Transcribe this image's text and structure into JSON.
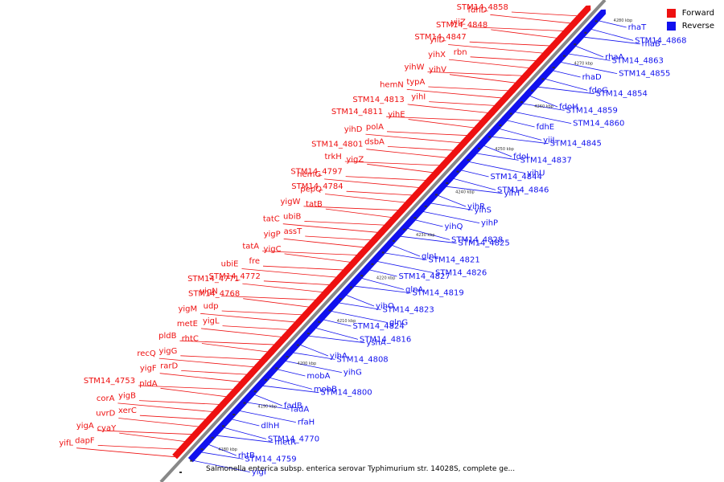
{
  "caption": "Salmonella enterica subsp. enterica serovar Typhimurium str. 14028S, complete ge...",
  "legend": [
    {
      "label": "Forward",
      "color": "#ee1111"
    },
    {
      "label": "Reverse",
      "color": "#1111ee"
    }
  ],
  "colors": {
    "forward": "#ee1111",
    "reverse": "#1111ee",
    "backbone": "#888888"
  },
  "ticks": [
    "4180 kbp",
    "4190 kbp",
    "4200 kbp",
    "4210 kbp",
    "4220 kbp",
    "4230 kbp",
    "4240 kbp",
    "4250 kbp",
    "4260 kbp",
    "4270 kbp",
    "4280 kbp"
  ],
  "forward_genes": [
    "STM14_4858",
    "fdhD",
    "yiiZ",
    "STM14_4848",
    "STM14_4847",
    "yiiD",
    "rbn",
    "yihX",
    "yihW",
    "yihV",
    "typA",
    "hemN",
    "yihI",
    "STM14_4813",
    "STM14_4811",
    "yihE",
    "polA",
    "yihD",
    "dsbA",
    "STM14_4801",
    "trkH",
    "yigZ",
    "STM14_4797",
    "hemG",
    "STM14_4784",
    "pepQ",
    "yigW",
    "tatB",
    "ubiB",
    "tatC",
    "assT",
    "yigP",
    "tatA",
    "yigC",
    "fre",
    "ubiE",
    "STM14_4772",
    "STM14_4771",
    "yigN",
    "STM14_4768",
    "udp",
    "yigM",
    "yigL",
    "metE",
    "pldB",
    "rhtC",
    "yigG",
    "recQ",
    "rarD",
    "yigF",
    "STM14_4753",
    "pldA",
    "yigB",
    "corA",
    "xerC",
    "uvrD",
    "yigA",
    "cyaY",
    "dapF",
    "yifL"
  ],
  "reverse_genes": [
    "rhaT",
    "STM14_4868",
    "rhaB",
    "rhaA",
    "STM14_4863",
    "STM14_4855",
    "rhaD",
    "fdoG",
    "STM14_4854",
    "fdoH",
    "STM14_4859",
    "STM14_4860",
    "fdhE",
    "yiiL",
    "STM14_4845",
    "fdoI",
    "STM14_4837",
    "yihU",
    "STM14_4844",
    "STM14_4846",
    "yihT",
    "yihR",
    "yihS",
    "yihP",
    "yihQ",
    "STM14_4828",
    "STM14_4825",
    "glnL",
    "STM14_4821",
    "STM14_4826",
    "STM14_4827",
    "glnA",
    "STM14_4819",
    "yihO",
    "STM14_4823",
    "glnG",
    "STM14_4824",
    "STM14_4816",
    "yshA",
    "yihA",
    "STM14_4808",
    "yihG",
    "mobA",
    "mobB",
    "STM14_4800",
    "fadB",
    "fadA",
    "rfaH",
    "dlhH",
    "STM14_4770",
    "metR",
    "rhtB",
    "STM14_4759",
    "yigI"
  ]
}
